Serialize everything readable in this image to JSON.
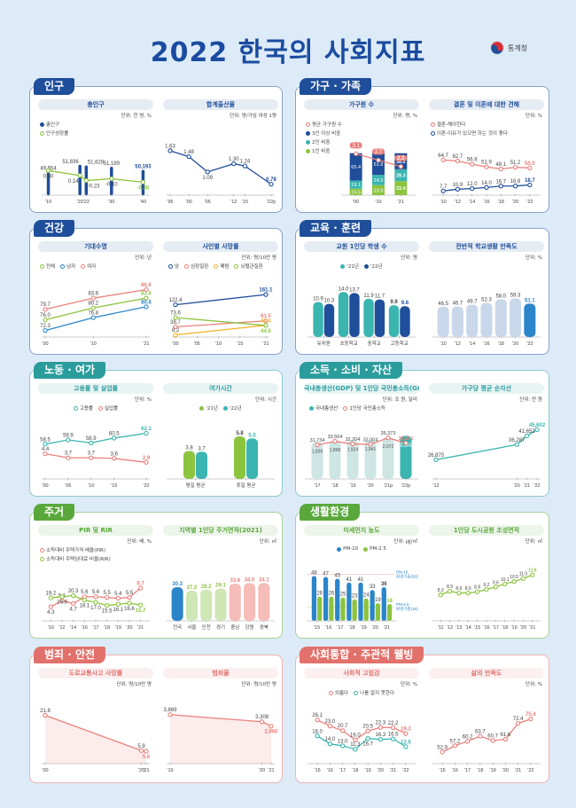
{
  "header": {
    "title": "2022 한국의 사회지표",
    "logo_text": "통계청"
  },
  "sections": [
    {
      "title": "인구",
      "color": "#1f4e9a",
      "charts": [
        0,
        1
      ]
    },
    {
      "title": "가구 · 가족",
      "color": "#1f4e9a",
      "charts": [
        2,
        3
      ]
    },
    {
      "title": "건강",
      "color": "#1f4e9a",
      "charts": [
        4,
        5
      ]
    },
    {
      "title": "교육 · 훈련",
      "color": "#1f4e9a",
      "charts": [
        6,
        7
      ]
    },
    {
      "title": "노동 · 여가",
      "color": "#2a9c9c",
      "charts": [
        8,
        9
      ]
    },
    {
      "title": "소득 · 소비 · 자산",
      "color": "#2a9c9c",
      "charts": [
        10,
        11
      ]
    },
    {
      "title": "주거",
      "color": "#5aa83c",
      "charts": [
        12,
        13
      ]
    },
    {
      "title": "생활환경",
      "color": "#5aa83c",
      "charts": [
        14,
        15
      ]
    },
    {
      "title": "범죄 · 안전",
      "color": "#e2716c",
      "charts": [
        16,
        17
      ]
    },
    {
      "title": "사회통합 · 주관적 웰빙",
      "color": "#e2716c",
      "charts": [
        18,
        19
      ]
    }
  ],
  "chart_data": [
    {
      "type": "bar",
      "title": "총인구",
      "unit": "단위: 천 명, %",
      "x": [
        2010,
        2020,
        2022,
        2030,
        2040
      ],
      "xdomain": [
        2009,
        2041
      ],
      "xlabels": [
        "'10",
        "'20",
        "'22",
        "'30",
        "'40"
      ],
      "series": [
        {
          "name": "총인구",
          "kind": "bar",
          "values": [
            49554,
            51836,
            51628,
            51199,
            50193
          ],
          "range": [
            42000,
            53500
          ],
          "dec": 0,
          "color": "#1f4e9a"
        },
        {
          "name": "인구성장률",
          "kind": "line",
          "values": [
            0.5,
            0.14,
            -0.23,
            -0.1,
            -0.35
          ],
          "range": [
            -1.3,
            1.3
          ],
          "dec": 2,
          "color": "#8cc43f",
          "below": true
        }
      ]
    },
    {
      "type": "line",
      "title": "합계출산율",
      "unit": "단위: 명/가임 여성 1명",
      "x": [
        1995,
        2000,
        2005,
        2012,
        2015,
        2022
      ],
      "xdomain": [
        1995,
        2022
      ],
      "xlabels": [
        "'95",
        "'00",
        "'05",
        "'12",
        "'15",
        "'22p"
      ],
      "series": [
        {
          "name": "",
          "kind": "line",
          "values": [
            1.63,
            1.48,
            1.09,
            1.3,
            1.24,
            0.78
          ],
          "range": [
            0.5,
            1.9
          ],
          "dec": 2,
          "color": "#1f4e9a",
          "below_idx": [
            2
          ]
        }
      ]
    },
    {
      "type": "bar",
      "title": "가구원 수",
      "unit": "단위: 명, %",
      "categories": [
        "'00",
        "'10",
        "'21"
      ],
      "series": [
        {
          "name": "평균 가구원 수",
          "kind": "line",
          "values": [
            3.1,
            2.7,
            2.3
          ],
          "range": [
            0.5,
            3.4
          ],
          "dec": 1,
          "color": "#e9807b"
        },
        {
          "name": "3인 이상 비중",
          "kind": "stack",
          "values": [
            65.4,
            51.9,
            38.2
          ],
          "range": [
            0,
            110
          ],
          "dec": 1,
          "color": "#1f4e9a"
        },
        {
          "name": "2인 비중",
          "kind": "stack",
          "values": [
            19.1,
            24.3,
            28.3
          ],
          "range": [
            0,
            110
          ],
          "dec": 1,
          "color": "#3ab5b0"
        },
        {
          "name": "1인 비중",
          "kind": "stack",
          "values": [
            15.5,
            23.9,
            33.4
          ],
          "range": [
            0,
            110
          ],
          "dec": 1,
          "color": "#8cc43f"
        }
      ]
    },
    {
      "type": "line",
      "title": "결혼 및 이혼에 대한 견해",
      "unit": "단위: %",
      "categories": [
        "'10",
        "'12",
        "'14",
        "'16",
        "'18",
        "'20",
        "'22"
      ],
      "series": [
        {
          "name": "결혼-해야한다",
          "kind": "line",
          "values": [
            64.7,
            62.7,
            56.8,
            51.9,
            48.1,
            51.2,
            50.0
          ],
          "range": [
            0,
            75
          ],
          "dec": 1,
          "color": "#e9807b"
        },
        {
          "name": "이혼-이유가 있으면 하는 것이 좋다",
          "kind": "line",
          "values": [
            7.7,
            10.9,
            12.0,
            14.0,
            16.7,
            16.8,
            18.7
          ],
          "range": [
            0,
            75
          ],
          "dec": 1,
          "color": "#1f4e9a"
        }
      ]
    },
    {
      "type": "line",
      "title": "기대수명",
      "unit": "단위: 년",
      "x": [
        2000,
        2010,
        2021
      ],
      "xdomain": [
        2000,
        2021
      ],
      "xlabels": [
        "'00",
        "'10",
        "'21"
      ],
      "series": [
        {
          "name": "전체",
          "kind": "line",
          "values": [
            76.0,
            80.2,
            83.6
          ],
          "range": [
            70,
            88
          ],
          "dec": 1,
          "color": "#8cc43f"
        },
        {
          "name": "남자",
          "kind": "line",
          "values": [
            72.3,
            76.8,
            80.6
          ],
          "range": [
            70,
            88
          ],
          "dec": 1,
          "color": "#2a85c9"
        },
        {
          "name": "여자",
          "kind": "line",
          "values": [
            79.7,
            83.6,
            86.6
          ],
          "range": [
            70,
            88
          ],
          "dec": 1,
          "color": "#e9807b"
        }
      ]
    },
    {
      "type": "line",
      "title": "사인별 사망률",
      "unit": "단위: 명/10만 명",
      "x": [
        2000,
        2021
      ],
      "xdomain": [
        2000,
        2021
      ],
      "xticks": [
        2000,
        2005,
        2010,
        2015,
        2021
      ],
      "xlabels": [
        "'00",
        "'05",
        "'10",
        "'15",
        "'21"
      ],
      "series": [
        {
          "name": "암",
          "kind": "line",
          "values": [
            122.4,
            161.1
          ],
          "range": [
            0,
            175
          ],
          "dec": 1,
          "color": "#1f4e9a"
        },
        {
          "name": "심장질환",
          "kind": "line",
          "values": [
            38.7,
            61.5
          ],
          "range": [
            0,
            175
          ],
          "dec": 1,
          "color": "#e9807b"
        },
        {
          "name": "폐렴",
          "kind": "line",
          "values": [
            8.2,
            44.4
          ],
          "range": [
            0,
            175
          ],
          "dec": 1,
          "color": "#f2b632"
        },
        {
          "name": "뇌혈관질환",
          "kind": "line",
          "values": [
            73.6,
            44.0
          ],
          "range": [
            0,
            175
          ],
          "dec": 1,
          "color": "#8cc43f",
          "below_idx": [
            1
          ]
        }
      ]
    },
    {
      "type": "bar",
      "title": "교원 1인당 학생 수",
      "unit": "단위: 명",
      "categories": [
        "유치원",
        "초등학교",
        "중학교",
        "고등학교"
      ],
      "series": [
        {
          "name": "'21년",
          "kind": "bar",
          "values": [
            10.9,
            14.0,
            11.9,
            9.9
          ],
          "range": [
            0,
            16
          ],
          "dec": 1,
          "color": "#3ab5b0"
        },
        {
          "name": "'22년",
          "kind": "bar",
          "values": [
            10.3,
            13.7,
            11.7,
            9.6
          ],
          "range": [
            0,
            16
          ],
          "dec": 1,
          "color": "#1f4e9a"
        }
      ]
    },
    {
      "type": "bar",
      "title": "전반적 학교생활 만족도",
      "unit": "단위: %",
      "categories": [
        "'10",
        "'12",
        "'14",
        "'16",
        "'18",
        "'20",
        "'22"
      ],
      "series": [
        {
          "name": "",
          "kind": "bar",
          "values": [
            46.5,
            46.7,
            49.7,
            52.3,
            58.0,
            59.3,
            51.1
          ],
          "range": [
            0,
            68
          ],
          "dec": 1,
          "color": "#c9d7ea",
          "highlight": "#2a85c9"
        }
      ]
    },
    {
      "type": "line",
      "title": "고용률 및 실업률",
      "unit": "단위: %",
      "x": [
        2000,
        2005,
        2010,
        2015,
        2022
      ],
      "xdomain": [
        2000,
        2022
      ],
      "xlabels": [
        "'00",
        "'05",
        "'10",
        "'15",
        "'22"
      ],
      "series": [
        {
          "name": "고용률",
          "kind": "line",
          "values": [
            58.5,
            59.9,
            58.9,
            60.5,
            62.1
          ],
          "range": [
            47,
            64
          ],
          "dec": 1,
          "color": "#3ab5b0"
        },
        {
          "name": "실업률",
          "kind": "line",
          "values": [
            4.4,
            3.7,
            3.7,
            3.6,
            2.9
          ],
          "range": [
            0,
            9
          ],
          "dec": 1,
          "color": "#e9807b"
        }
      ]
    },
    {
      "type": "bar",
      "title": "여가시간",
      "unit": "단위: 시간",
      "categories": [
        "평일 평균",
        "휴일 평균"
      ],
      "series": [
        {
          "name": "'21년",
          "kind": "bar",
          "values": [
            3.8,
            5.8
          ],
          "range": [
            0,
            7
          ],
          "dec": 1,
          "color": "#8cc43f"
        },
        {
          "name": "'22년",
          "kind": "bar",
          "values": [
            3.7,
            5.5
          ],
          "range": [
            0,
            7
          ],
          "dec": 1,
          "color": "#3ab5b0"
        }
      ]
    },
    {
      "type": "bar",
      "title": "국내총생산(GDP) 및 1인당 국민총소득(GNI)",
      "unit": "단위: 조 원, 달러",
      "categories": [
        "'17",
        "'18",
        "'19",
        "'20",
        "'21p",
        "'22p"
      ],
      "series": [
        {
          "name": "국내총생산",
          "kind": "bar",
          "values": [
            1836,
            1898,
            1924,
            1941,
            2072,
            2151
          ],
          "range": [
            0,
            2300
          ],
          "dec": 0,
          "color": "#cde6e4",
          "highlight": "#3ab5b0",
          "inside": true
        },
        {
          "name": "1인당 국민총소득",
          "kind": "line",
          "values": [
            31734,
            33564,
            32204,
            32004,
            35373,
            32661
          ],
          "range": [
            14000,
            38000
          ],
          "dec": 0,
          "color": "#e9807b"
        }
      ]
    },
    {
      "type": "line",
      "title": "가구당 평균 순자산",
      "unit": "단위: 만 원",
      "x": [
        2012,
        2020,
        2021,
        2022
      ],
      "xdomain": [
        2012,
        2022
      ],
      "xlabels": [
        "'12",
        "'20",
        "'21",
        "'22"
      ],
      "series": [
        {
          "name": "",
          "kind": "line",
          "values": [
            26875,
            36287,
            41652,
            45602
          ],
          "range": [
            15000,
            48000
          ],
          "dec": 0,
          "color": "#3ab5b0"
        }
      ]
    },
    {
      "type": "line",
      "title": "PIR 및 RIR",
      "unit": "단위: 배, %",
      "categories": [
        "'10",
        "'12",
        "'14",
        "'16",
        "'17",
        "'18",
        "'19",
        "'20",
        "'21"
      ],
      "series": [
        {
          "name": "소득대비 주택가격 배율(PIR)",
          "kind": "line",
          "values": [
            4.3,
            5.1,
            4.7,
            5.6,
            5.6,
            5.5,
            5.4,
            5.5,
            6.7
          ],
          "range": [
            2.5,
            7.5
          ],
          "dec": 1,
          "color": "#e9807b",
          "below_idx": [
            0,
            2
          ]
        },
        {
          "name": "소득대비 주택임대료 비율(RIR)",
          "kind": "line",
          "values": [
            19.2,
            19.8,
            20.3,
            18.1,
            17.0,
            15.5,
            16.1,
            16.6,
            15.7
          ],
          "range": [
            8,
            27
          ],
          "dec": 1,
          "color": "#8cc43f",
          "below_idx": [
            1,
            3,
            4,
            5,
            6,
            7,
            8
          ]
        }
      ]
    },
    {
      "type": "bar",
      "title": "지역별 1인당 주거면적(2021)",
      "unit": "단위: ㎡",
      "categories": [
        "전국",
        "서울",
        "인천",
        "경기",
        "충남",
        "강원",
        "경북"
      ],
      "series": [
        {
          "name": "",
          "kind": "bar",
          "values": [
            30.3,
            27.2,
            28.2,
            29.1,
            33.6,
            34.0,
            34.1
          ],
          "range": [
            0,
            40
          ],
          "dec": 1,
          "color": "#cfe6b5",
          "colors": [
            "#2a85c9",
            "#cfe6b5",
            "#cfe6b5",
            "#cfe6b5",
            "#f6bcb8",
            "#f6bcb8",
            "#f6bcb8"
          ],
          "label_colors": [
            "#2a85c9",
            "#8cc43f",
            "#8cc43f",
            "#8cc43f",
            "#e9807b",
            "#e9807b",
            "#e9807b"
          ]
        }
      ]
    },
    {
      "type": "bar",
      "title": "미세먼지 농도",
      "unit": "단위: ㎍/㎥",
      "categories": [
        "'15",
        "'16",
        "'17",
        "'18",
        "'19",
        "'20",
        "'21"
      ],
      "reflines": [
        {
          "value": 50,
          "label": "PM-10 환경기준(50)",
          "color": "#2a85c9"
        },
        {
          "value": 15,
          "label": "PM-2.5 환경기준(15)",
          "color": "#2a85c9"
        }
      ],
      "series": [
        {
          "name": "PM-10",
          "kind": "bar",
          "values": [
            48,
            47,
            45,
            41,
            41,
            33,
            36
          ],
          "range": [
            0,
            55
          ],
          "dec": 0,
          "color": "#2a85c9"
        },
        {
          "name": "PM-2.5",
          "kind": "bar",
          "values": [
            26,
            26,
            25,
            23,
            24,
            19,
            18
          ],
          "range": [
            0,
            55
          ],
          "dec": 0,
          "color": "#8cc43f"
        }
      ]
    },
    {
      "type": "line",
      "title": "1인당 도시공원 조성면적",
      "unit": "단위: ㎡",
      "categories": [
        "'11",
        "'12",
        "'13",
        "'14",
        "'15",
        "'16",
        "'17",
        "'18",
        "'19",
        "'20",
        "'21"
      ],
      "series": [
        {
          "name": "",
          "kind": "line",
          "values": [
            8.3,
            8.9,
            8.6,
            8.6,
            8.8,
            9.2,
            9.6,
            10.1,
            10.5,
            11.0,
            11.6
          ],
          "range": [
            4,
            12.5
          ],
          "dec": 1,
          "color": "#8cc43f"
        }
      ]
    },
    {
      "type": "area",
      "title": "도로교통사고 사망률",
      "unit": "단위: 명/10만 명",
      "x": [
        2000,
        2020,
        2021
      ],
      "xdomain": [
        2000,
        2021
      ],
      "xlabels": [
        "'00",
        "'20",
        "'21"
      ],
      "series": [
        {
          "name": "",
          "kind": "line",
          "area": true,
          "values": [
            21.8,
            5.9,
            5.6
          ],
          "range": [
            0,
            24
          ],
          "dec": 1,
          "color": "#e9807b",
          "below_idx": [
            2
          ]
        }
      ]
    },
    {
      "type": "area",
      "title": "범죄율",
      "unit": "단위: 명/10만 명",
      "x": [
        2010,
        2020,
        2021
      ],
      "xdomain": [
        2010,
        2021
      ],
      "xlabels": [
        "'10",
        "'20",
        "'21"
      ],
      "series": [
        {
          "name": "",
          "kind": "line",
          "area": true,
          "values": [
            3869,
            3308,
            2960
          ],
          "range": [
            0,
            4200
          ],
          "dec": 0,
          "color": "#e9807b",
          "below_idx": [
            2
          ]
        }
      ]
    },
    {
      "type": "line",
      "title": "사회적 고립감",
      "unit": "단위: %",
      "categories": [
        "'15",
        "'16",
        "'17",
        "'18",
        "'19",
        "'20",
        "'21",
        "'22"
      ],
      "series": [
        {
          "name": "외롭다",
          "kind": "line",
          "values": [
            26.1,
            23.0,
            20.7,
            16.0,
            20.5,
            22.3,
            22.2,
            19.2
          ],
          "range": [
            4,
            30
          ],
          "dec": 1,
          "color": "#e9807b"
        },
        {
          "name": "나를 알지 못한다",
          "kind": "line",
          "values": [
            18.0,
            14.0,
            13.0,
            11.3,
            16.7,
            16.3,
            16.5,
            12.6
          ],
          "range": [
            4,
            30
          ],
          "dec": 1,
          "color": "#3ab5b0",
          "below_idx": [
            4
          ]
        }
      ]
    },
    {
      "type": "line",
      "title": "삶의 만족도",
      "unit": "단위: %",
      "categories": [
        "'15",
        "'16",
        "'17",
        "'18",
        "'19",
        "'20",
        "'21",
        "'22"
      ],
      "series": [
        {
          "name": "",
          "kind": "line",
          "values": [
            52.9,
            57.2,
            60.2,
            63.7,
            60.7,
            61.6,
            72.4,
            75.4
          ],
          "range": [
            45,
            80
          ],
          "dec": 1,
          "color": "#e9807b"
        }
      ]
    }
  ]
}
